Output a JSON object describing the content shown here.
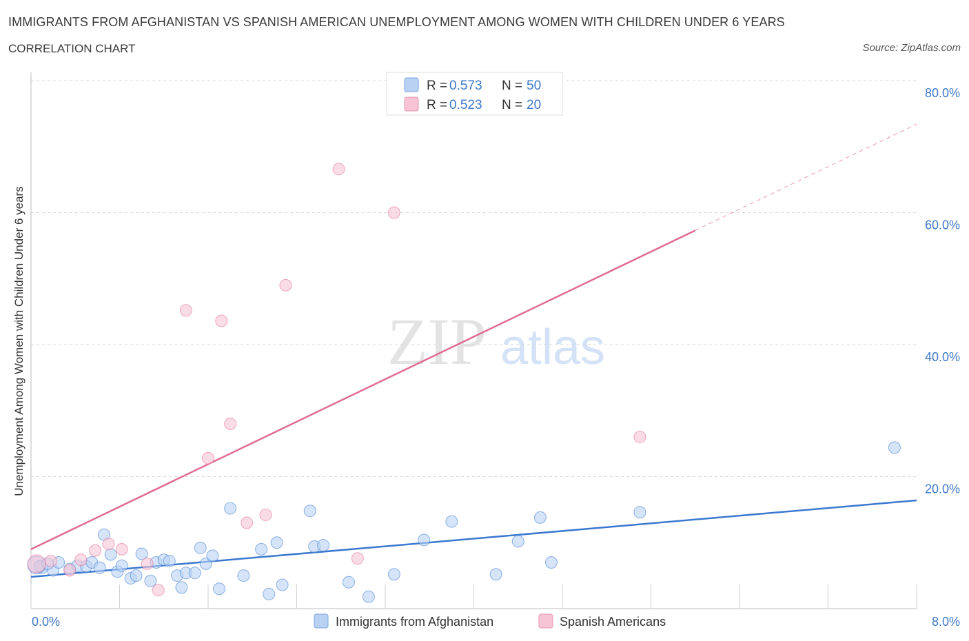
{
  "header": {
    "title": "IMMIGRANTS FROM AFGHANISTAN VS SPANISH AMERICAN UNEMPLOYMENT AMONG WOMEN WITH CHILDREN UNDER 6 YEARS",
    "subtitle": "CORRELATION CHART",
    "source": "Source: ZipAtlas.com"
  },
  "watermark": {
    "zip": "ZIP",
    "atlas": "atlas"
  },
  "legend": {
    "r_label": "R =",
    "n_label": "N =",
    "rows": [
      {
        "r": "0.573",
        "n": "50"
      },
      {
        "r": "0.523",
        "n": "20"
      }
    ]
  },
  "colors": {
    "blue": "#3a78d0",
    "blue_fill": "#b9d2f3",
    "pink": "#e06a93",
    "pink_fill": "#f7c4d5",
    "tick_label": "#3c78c8",
    "grid": "#d8d8d8"
  },
  "chart_data": {
    "type": "scatter",
    "title": "IMMIGRANTS FROM AFGHANISTAN VS SPANISH AMERICAN UNEMPLOYMENT AMONG WOMEN WITH CHILDREN UNDER 6 YEARS",
    "subtitle": "CORRELATION CHART",
    "xlabel": "",
    "ylabel": "Unemployment Among Women with Children Under 6 years",
    "xlim": [
      0,
      8
    ],
    "ylim": [
      0,
      80
    ],
    "x_tick_labels": [
      "0.0%",
      "8.0%"
    ],
    "y_ticks": [
      20,
      40,
      60,
      80
    ],
    "y_tick_labels": [
      "20.0%",
      "40.0%",
      "60.0%",
      "80.0%"
    ],
    "grid": true,
    "legend_position": "top-center",
    "series": [
      {
        "name": "Immigrants from Afghanistan",
        "color": "#3a78d0",
        "trend": {
          "x": [
            0,
            8
          ],
          "y": [
            4.8,
            16.4
          ],
          "dashed_from_x": null
        },
        "points": [
          [
            0.05,
            6.6
          ],
          [
            0.1,
            6.2
          ],
          [
            0.2,
            5.8
          ],
          [
            0.25,
            7.0
          ],
          [
            0.35,
            6.0
          ],
          [
            0.42,
            6.5
          ],
          [
            0.5,
            6.4
          ],
          [
            0.55,
            7.0
          ],
          [
            0.62,
            6.2
          ],
          [
            0.66,
            11.2
          ],
          [
            0.72,
            8.2
          ],
          [
            0.78,
            5.6
          ],
          [
            0.82,
            6.5
          ],
          [
            0.9,
            4.6
          ],
          [
            0.95,
            5.0
          ],
          [
            1.0,
            8.3
          ],
          [
            1.08,
            4.2
          ],
          [
            1.13,
            7.0
          ],
          [
            1.2,
            7.4
          ],
          [
            1.25,
            7.2
          ],
          [
            1.32,
            5.0
          ],
          [
            1.36,
            3.2
          ],
          [
            1.4,
            5.4
          ],
          [
            1.48,
            5.4
          ],
          [
            1.53,
            9.2
          ],
          [
            1.58,
            6.8
          ],
          [
            1.64,
            8.0
          ],
          [
            1.7,
            3.0
          ],
          [
            1.8,
            15.2
          ],
          [
            1.92,
            5.0
          ],
          [
            2.08,
            9.0
          ],
          [
            2.15,
            2.2
          ],
          [
            2.22,
            10.0
          ],
          [
            2.27,
            3.6
          ],
          [
            2.52,
            14.8
          ],
          [
            2.56,
            9.4
          ],
          [
            2.64,
            9.6
          ],
          [
            2.87,
            4.0
          ],
          [
            3.05,
            1.8
          ],
          [
            3.28,
            5.2
          ],
          [
            3.55,
            10.4
          ],
          [
            3.8,
            13.2
          ],
          [
            4.2,
            5.2
          ],
          [
            4.4,
            10.2
          ],
          [
            4.6,
            13.8
          ],
          [
            4.7,
            7.0
          ],
          [
            5.5,
            14.6
          ],
          [
            7.8,
            24.4
          ],
          [
            0.08,
            6.4
          ],
          [
            0.15,
            6.8
          ]
        ]
      },
      {
        "name": "Spanish Americans",
        "color": "#e06a93",
        "trend": {
          "x": [
            0,
            8
          ],
          "y": [
            9.0,
            73.4
          ],
          "dashed_from_x": 6.0
        },
        "points": [
          [
            0.05,
            6.8
          ],
          [
            0.18,
            7.2
          ],
          [
            0.35,
            5.8
          ],
          [
            0.45,
            7.4
          ],
          [
            0.58,
            8.8
          ],
          [
            0.7,
            9.8
          ],
          [
            0.82,
            9.0
          ],
          [
            1.05,
            6.8
          ],
          [
            1.15,
            2.8
          ],
          [
            1.4,
            45.2
          ],
          [
            1.6,
            22.8
          ],
          [
            1.72,
            43.6
          ],
          [
            1.8,
            28.0
          ],
          [
            1.95,
            13.0
          ],
          [
            2.12,
            14.2
          ],
          [
            2.3,
            49.0
          ],
          [
            2.78,
            66.6
          ],
          [
            2.95,
            7.6
          ],
          [
            3.28,
            60.0
          ],
          [
            5.5,
            26.0
          ]
        ]
      }
    ]
  },
  "bottom_legend": [
    {
      "label": "Immigrants from Afghanistan"
    },
    {
      "label": "Spanish Americans"
    }
  ]
}
